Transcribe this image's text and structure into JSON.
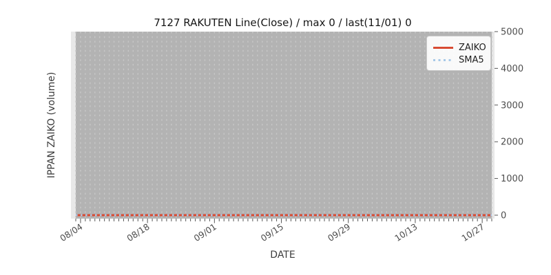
{
  "chart_data": {
    "type": "line",
    "title": "7127 RAKUTEN Line(Close) / max 0 / last(11/01) 0",
    "xlabel": "DATE",
    "ylabel": "IPPAN ZAIKO (volume)",
    "x_axis": {
      "tick_labels": [
        "08/04",
        "08/18",
        "09/01",
        "09/15",
        "09/29",
        "10/13",
        "10/27"
      ],
      "major_tick_day_indices": [
        1,
        15,
        29,
        43,
        57,
        71,
        85
      ],
      "days_total": 88,
      "label_rotation_deg": -33
    },
    "y_axis": {
      "ticks": [
        0,
        1000,
        2000,
        3000,
        4000,
        5000
      ],
      "ylim": [
        -94,
        5000
      ],
      "side": "right"
    },
    "series": [
      {
        "name": "ZAIKO",
        "style": "solid",
        "color": "#d84b32",
        "constant_value": 0
      },
      {
        "name": "SMA5",
        "style": "dotted",
        "color": "#a7c9e8",
        "constant_value": 0
      }
    ],
    "legend": {
      "position": "top-right"
    },
    "grid": "daily-vertical-dashed",
    "palette": {
      "plot_background": "#e8e8e8",
      "data_region_background": "#b3b3b3",
      "gridline": "#c7c7c7",
      "tick_mark": "#555555",
      "tick_label_color": "#4d4d4d"
    }
  }
}
